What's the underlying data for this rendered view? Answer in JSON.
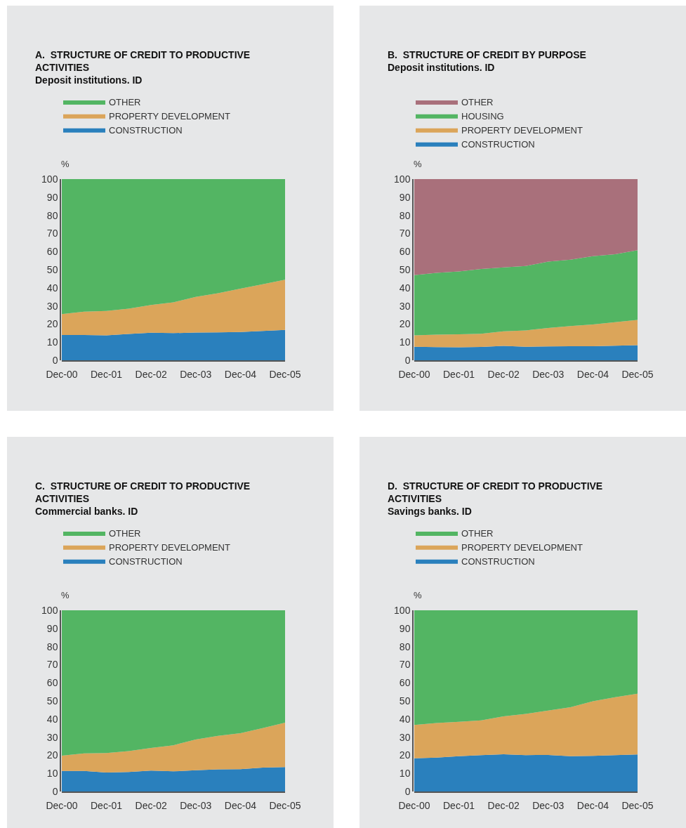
{
  "chart_data": [
    {
      "type": "area",
      "stacked": true,
      "title": "A.  STRUCTURE OF CREDIT TO PRODUCTIVE ACTIVITIES",
      "subtitle": "Deposit institutions. ID",
      "ylabel": "%",
      "legend": "top left",
      "grid": false,
      "x": [
        "2000-12",
        "2001-06",
        "2001-12",
        "2002-06",
        "2002-12",
        "2003-06",
        "2003-12",
        "2004-06",
        "2004-12",
        "2005-06",
        "2005-12"
      ],
      "xlim": [
        "2000-12",
        "2005-12"
      ],
      "xticks": [
        {
          "value": "2000-12",
          "label": "Dec-00"
        },
        {
          "value": "2001-12",
          "label": "Dec-01"
        },
        {
          "value": "2002-12",
          "label": "Dec-02"
        },
        {
          "value": "2003-12",
          "label": "Dec-03"
        },
        {
          "value": "2004-12",
          "label": "Dec-04"
        },
        {
          "value": "2005-12",
          "label": "Dec-05"
        }
      ],
      "ylim": [
        0,
        100
      ],
      "yticks": [
        0,
        10,
        20,
        30,
        40,
        50,
        60,
        70,
        80,
        90,
        100
      ],
      "series": [
        {
          "name": "CONSTRUCTION",
          "color": "#2a80bd",
          "values": [
            14,
            14,
            13.8,
            14.5,
            15.2,
            15,
            15.3,
            15.4,
            15.6,
            16.2,
            16.8
          ]
        },
        {
          "name": "PROPERTY DEVELOPMENT",
          "color": "#dba55a",
          "values": [
            11.5,
            12.8,
            13.4,
            14,
            15.3,
            17,
            19.7,
            21.6,
            23.9,
            25.8,
            27.7
          ]
        },
        {
          "name": "OTHER",
          "color": "#53b563",
          "values": [
            74.5,
            73.2,
            72.8,
            71.5,
            69.5,
            68,
            65,
            63,
            60.5,
            58,
            55.5
          ]
        }
      ]
    },
    {
      "type": "area",
      "stacked": true,
      "title": "B.  STRUCTURE OF CREDIT BY PURPOSE",
      "subtitle": "Deposit institutions. ID",
      "ylabel": "%",
      "legend": "top left",
      "grid": false,
      "x": [
        "2000-12",
        "2001-06",
        "2001-12",
        "2002-06",
        "2002-12",
        "2003-06",
        "2003-12",
        "2004-06",
        "2004-12",
        "2005-06",
        "2005-12"
      ],
      "xlim": [
        "2000-12",
        "2005-12"
      ],
      "xticks": [
        {
          "value": "2000-12",
          "label": "Dec-00"
        },
        {
          "value": "2001-12",
          "label": "Dec-01"
        },
        {
          "value": "2002-12",
          "label": "Dec-02"
        },
        {
          "value": "2003-12",
          "label": "Dec-03"
        },
        {
          "value": "2004-12",
          "label": "Dec-04"
        },
        {
          "value": "2005-12",
          "label": "Dec-05"
        }
      ],
      "ylim": [
        0,
        100
      ],
      "yticks": [
        0,
        10,
        20,
        30,
        40,
        50,
        60,
        70,
        80,
        90,
        100
      ],
      "series": [
        {
          "name": "CONSTRUCTION",
          "color": "#2a80bd",
          "values": [
            7.5,
            7.3,
            7.2,
            7.4,
            7.9,
            7.5,
            7.7,
            7.8,
            7.8,
            8,
            8.3
          ]
        },
        {
          "name": "PROPERTY DEVELOPMENT",
          "color": "#dba55a",
          "values": [
            6.3,
            6.8,
            7.1,
            7.2,
            8.1,
            9,
            10.1,
            11.1,
            12,
            13,
            14
          ]
        },
        {
          "name": "HOUSING",
          "color": "#53b563",
          "values": [
            33.2,
            34.2,
            34.7,
            35.8,
            35.3,
            35.5,
            36.7,
            36.6,
            37.7,
            37.5,
            38.5
          ]
        },
        {
          "name": "OTHER",
          "color": "#a9707b",
          "values": [
            53,
            51.7,
            51,
            49.6,
            48.7,
            48,
            45.5,
            44.5,
            42.5,
            41.5,
            39.2
          ]
        }
      ]
    },
    {
      "type": "area",
      "stacked": true,
      "title": "C.  STRUCTURE OF CREDIT TO PRODUCTIVE ACTIVITIES",
      "subtitle": "Commercial banks. ID",
      "ylabel": "%",
      "legend": "top left",
      "grid": false,
      "x": [
        "2000-12",
        "2001-06",
        "2001-12",
        "2002-06",
        "2002-12",
        "2003-06",
        "2003-12",
        "2004-06",
        "2004-12",
        "2005-06",
        "2005-12"
      ],
      "xlim": [
        "2000-12",
        "2005-12"
      ],
      "xticks": [
        {
          "value": "2000-12",
          "label": "Dec-00"
        },
        {
          "value": "2001-12",
          "label": "Dec-01"
        },
        {
          "value": "2002-12",
          "label": "Dec-02"
        },
        {
          "value": "2003-12",
          "label": "Dec-03"
        },
        {
          "value": "2004-12",
          "label": "Dec-04"
        },
        {
          "value": "2005-12",
          "label": "Dec-05"
        }
      ],
      "ylim": [
        0,
        100
      ],
      "yticks": [
        0,
        10,
        20,
        30,
        40,
        50,
        60,
        70,
        80,
        90,
        100
      ],
      "series": [
        {
          "name": "CONSTRUCTION",
          "color": "#2a80bd",
          "values": [
            11.3,
            11.3,
            10.5,
            10.8,
            11.5,
            11.1,
            11.7,
            12.2,
            12.3,
            13.2,
            13.5
          ]
        },
        {
          "name": "PROPERTY DEVELOPMENT",
          "color": "#dba55a",
          "values": [
            8.5,
            9.7,
            10.7,
            11.5,
            12.5,
            14.4,
            17,
            18.5,
            19.9,
            21.8,
            24.5
          ]
        },
        {
          "name": "OTHER",
          "color": "#53b563",
          "values": [
            80.2,
            79,
            78.8,
            77.7,
            76,
            74.5,
            71.3,
            69.3,
            67.8,
            65,
            62
          ]
        }
      ]
    },
    {
      "type": "area",
      "stacked": true,
      "title": "D.  STRUCTURE OF CREDIT TO PRODUCTIVE ACTIVITIES",
      "subtitle": "Savings banks. ID",
      "ylabel": "%",
      "legend": "top left",
      "grid": false,
      "x": [
        "2000-12",
        "2001-06",
        "2001-12",
        "2002-06",
        "2002-12",
        "2003-06",
        "2003-12",
        "2004-06",
        "2004-12",
        "2005-06",
        "2005-12"
      ],
      "xlim": [
        "2000-12",
        "2005-12"
      ],
      "xticks": [
        {
          "value": "2000-12",
          "label": "Dec-00"
        },
        {
          "value": "2001-12",
          "label": "Dec-01"
        },
        {
          "value": "2002-12",
          "label": "Dec-02"
        },
        {
          "value": "2003-12",
          "label": "Dec-03"
        },
        {
          "value": "2004-12",
          "label": "Dec-04"
        },
        {
          "value": "2005-12",
          "label": "Dec-05"
        }
      ],
      "ylim": [
        0,
        100
      ],
      "yticks": [
        0,
        10,
        20,
        30,
        40,
        50,
        60,
        70,
        80,
        90,
        100
      ],
      "series": [
        {
          "name": "CONSTRUCTION",
          "color": "#2a80bd",
          "values": [
            18.3,
            18.7,
            19.5,
            20.1,
            20.5,
            20.1,
            20.2,
            19.5,
            19.7,
            20.1,
            20.4
          ]
        },
        {
          "name": "PROPERTY DEVELOPMENT",
          "color": "#dba55a",
          "values": [
            18.4,
            19.1,
            19,
            19.1,
            21,
            22.7,
            24.5,
            27,
            30.1,
            31.9,
            33.6
          ]
        },
        {
          "name": "OTHER",
          "color": "#53b563",
          "values": [
            63.3,
            62.2,
            61.5,
            60.8,
            58.5,
            57.2,
            55.3,
            53.5,
            50.2,
            48,
            46
          ]
        }
      ]
    }
  ]
}
